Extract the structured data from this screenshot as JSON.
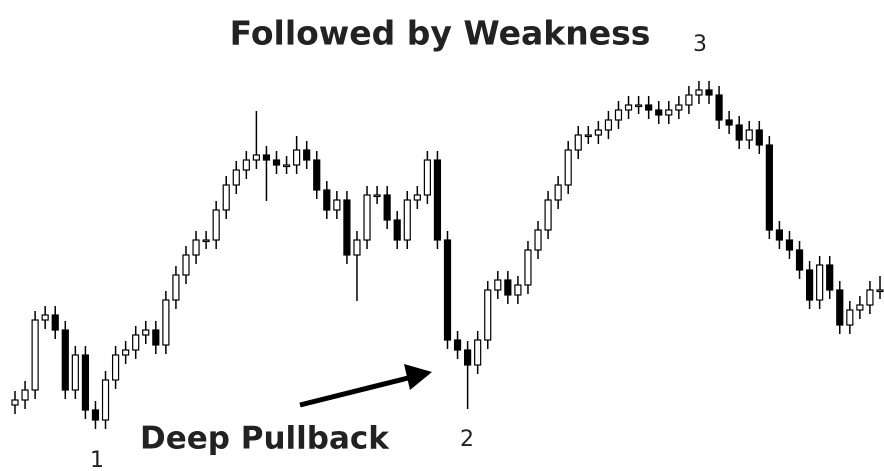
{
  "chart_data": {
    "type": "candlestick",
    "title": "Followed by Weakness",
    "annotations": [
      "3",
      "Deep Pullback",
      "2",
      "1"
    ],
    "up_color": "#ffffff",
    "down_color": "#000000",
    "outline_color": "#000000",
    "ylim": [
      0,
      471
    ],
    "open": [
      66,
      71,
      81,
      151,
      156,
      141,
      81,
      116,
      61,
      51,
      91,
      116,
      121,
      136,
      141,
      126,
      171,
      196,
      216,
      231,
      231,
      261,
      286,
      301,
      311,
      316,
      311,
      306,
      306,
      321,
      311,
      281,
      261,
      271,
      216,
      231,
      276,
      276,
      251,
      231,
      271,
      276,
      311,
      231,
      131,
      121,
      106,
      131,
      181,
      191,
      176,
      186,
      221,
      241,
      271,
      286,
      321,
      336,
      336,
      341,
      351,
      361,
      366,
      366,
      361,
      356,
      361,
      366,
      376,
      381,
      376,
      351,
      346,
      331,
      341,
      326,
      241,
      231,
      221,
      201,
      171,
      206,
      181,
      146,
      161,
      166,
      181
    ],
    "high": [
      80,
      90,
      160,
      165,
      165,
      150,
      125,
      125,
      70,
      100,
      125,
      130,
      145,
      150,
      150,
      180,
      205,
      225,
      240,
      240,
      270,
      295,
      310,
      320,
      360,
      325,
      320,
      315,
      335,
      330,
      320,
      290,
      280,
      280,
      240,
      285,
      285,
      285,
      260,
      280,
      285,
      320,
      320,
      240,
      140,
      130,
      140,
      190,
      200,
      200,
      195,
      230,
      250,
      280,
      295,
      330,
      345,
      345,
      350,
      360,
      370,
      375,
      375,
      375,
      370,
      370,
      375,
      385,
      390,
      390,
      385,
      360,
      355,
      350,
      350,
      335,
      250,
      240,
      230,
      210,
      215,
      215,
      190,
      170,
      175,
      190,
      195
    ],
    "low": [
      57,
      62,
      72,
      142,
      132,
      72,
      72,
      52,
      42,
      42,
      82,
      107,
      112,
      127,
      117,
      117,
      162,
      187,
      207,
      222,
      222,
      252,
      277,
      292,
      302,
      270,
      297,
      297,
      297,
      302,
      272,
      252,
      252,
      207,
      170,
      222,
      267,
      242,
      222,
      222,
      262,
      267,
      222,
      122,
      112,
      62,
      97,
      122,
      172,
      167,
      167,
      177,
      212,
      232,
      262,
      277,
      312,
      327,
      327,
      332,
      342,
      352,
      357,
      352,
      347,
      347,
      352,
      357,
      367,
      367,
      342,
      337,
      322,
      322,
      317,
      232,
      222,
      212,
      192,
      162,
      162,
      172,
      137,
      137,
      152,
      157,
      172
    ],
    "close": [
      71,
      81,
      151,
      156,
      141,
      81,
      116,
      61,
      51,
      91,
      116,
      121,
      136,
      141,
      126,
      171,
      196,
      216,
      231,
      231,
      261,
      286,
      301,
      311,
      316,
      311,
      306,
      306,
      321,
      311,
      281,
      261,
      271,
      216,
      231,
      276,
      276,
      251,
      231,
      271,
      276,
      311,
      231,
      131,
      121,
      106,
      131,
      181,
      191,
      176,
      186,
      221,
      241,
      271,
      286,
      321,
      336,
      336,
      341,
      351,
      361,
      366,
      366,
      361,
      356,
      361,
      366,
      376,
      381,
      376,
      351,
      346,
      331,
      341,
      326,
      241,
      231,
      221,
      201,
      171,
      206,
      181,
      146,
      161,
      166,
      181,
      181
    ]
  }
}
